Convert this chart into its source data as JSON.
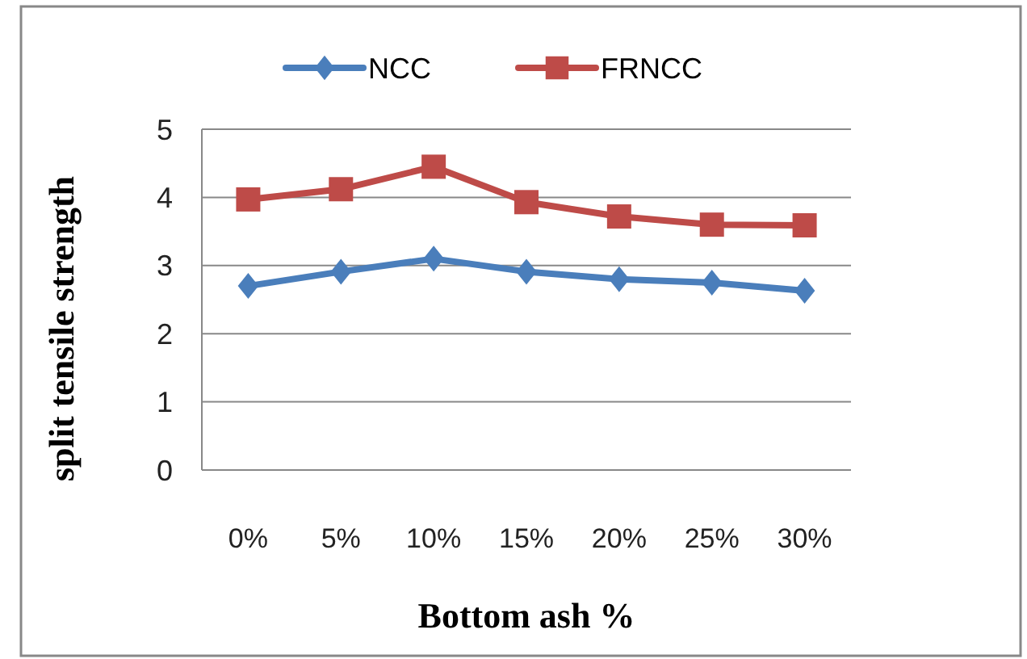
{
  "chart_data": {
    "type": "line",
    "xlabel": "Bottom ash %",
    "ylabel": "split tensile strength",
    "categories": [
      "0%",
      "5%",
      "10%",
      "15%",
      "20%",
      "25%",
      "30%"
    ],
    "series": [
      {
        "name": "NCC",
        "color": "#4a7ebb",
        "marker": "diamond",
        "values": [
          2.7,
          2.91,
          3.1,
          2.91,
          2.8,
          2.75,
          2.63
        ]
      },
      {
        "name": "FRNCC",
        "color": "#be4b48",
        "marker": "square",
        "values": [
          3.97,
          4.12,
          4.45,
          3.93,
          3.72,
          3.6,
          3.59
        ]
      }
    ],
    "ylim": [
      0,
      5
    ],
    "yticks": [
      0,
      1,
      2,
      3,
      4,
      5
    ],
    "grid": "y",
    "legend": "top",
    "line_style": "solid"
  }
}
